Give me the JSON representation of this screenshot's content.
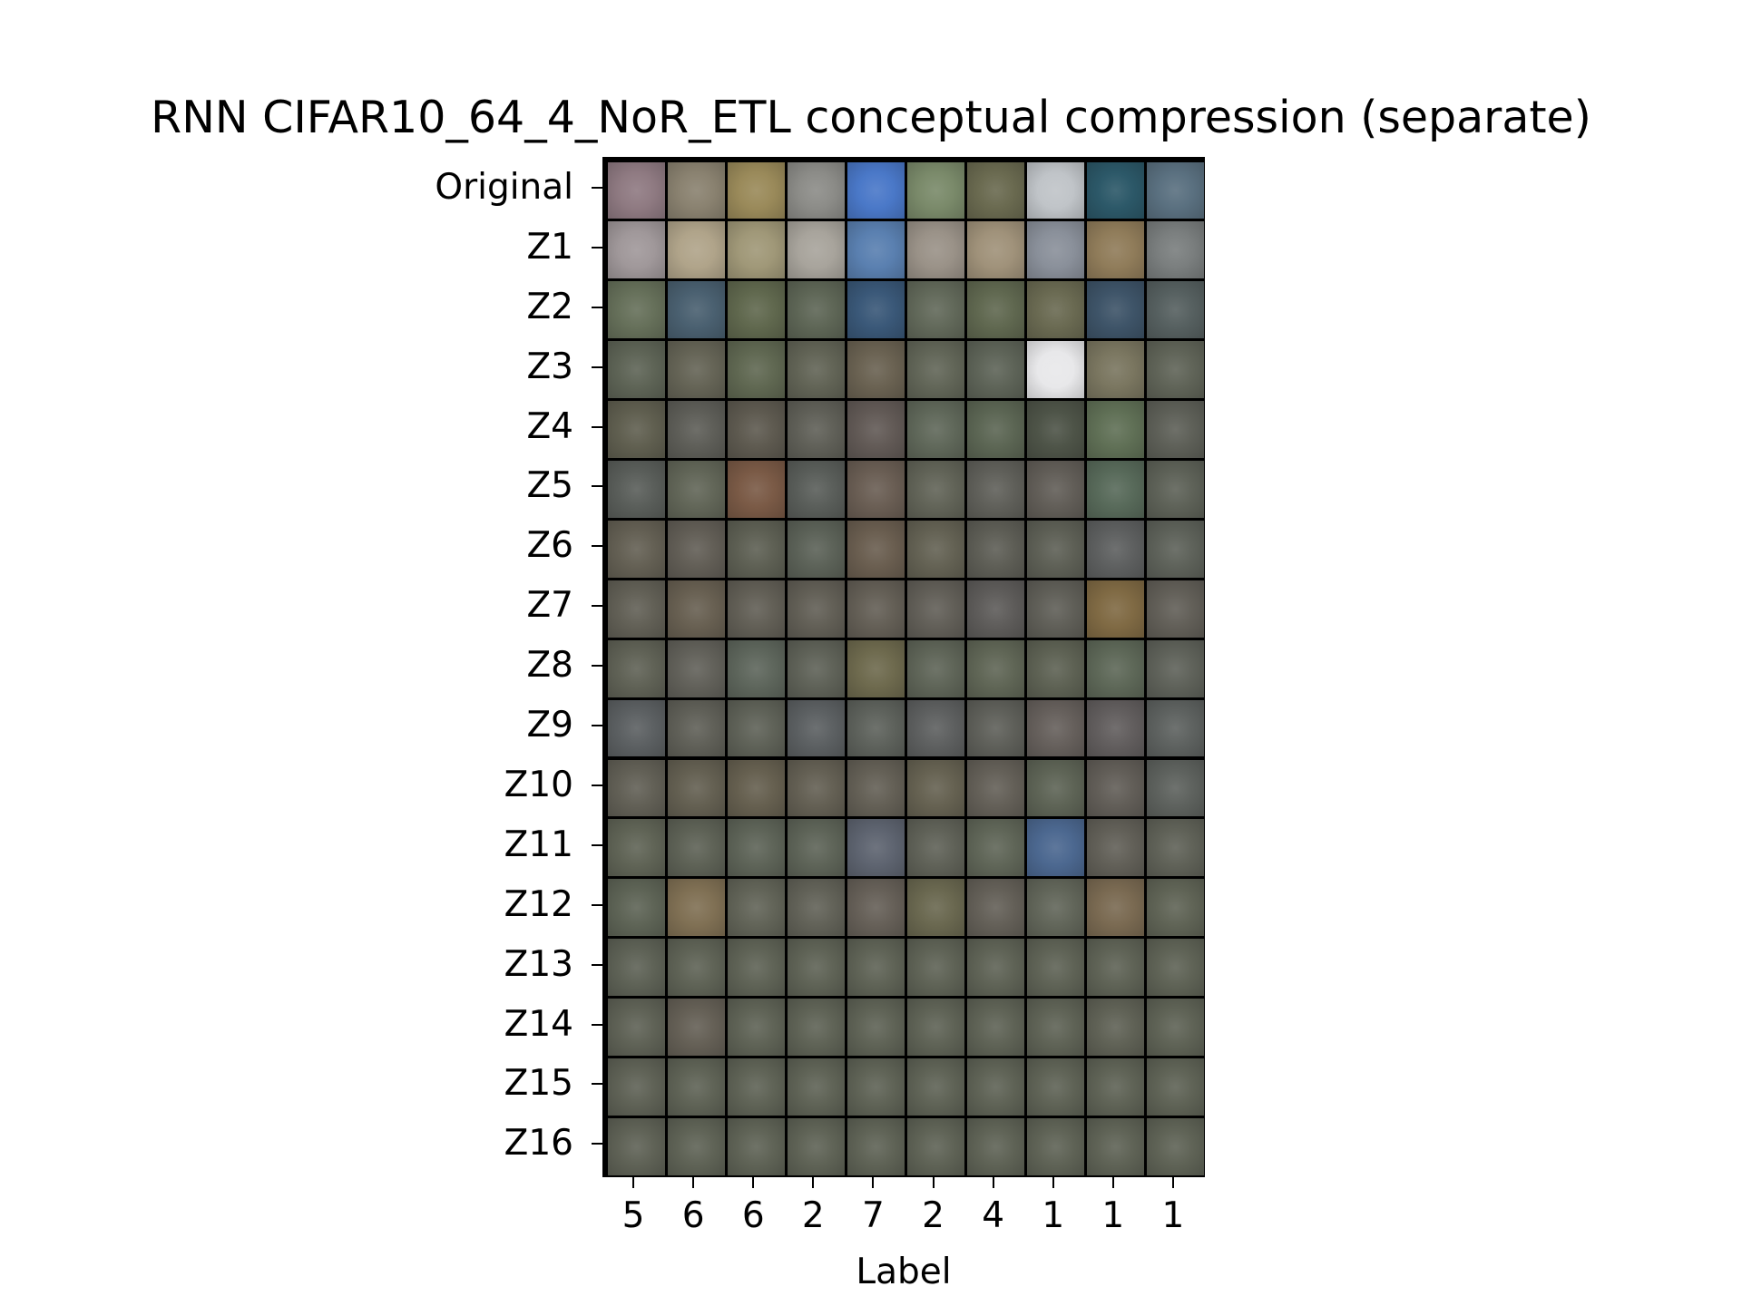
{
  "figure": {
    "title": "RNN CIFAR10_64_4_NoR_ETL conceptual compression (separate)",
    "xlabel": "Label"
  },
  "rows": [
    "Original",
    "Z1",
    "Z2",
    "Z3",
    "Z4",
    "Z5",
    "Z6",
    "Z7",
    "Z8",
    "Z9",
    "Z10",
    "Z11",
    "Z12",
    "Z13",
    "Z14",
    "Z15",
    "Z16"
  ],
  "columns": [
    "5",
    "6",
    "6",
    "2",
    "7",
    "2",
    "4",
    "1",
    "1",
    "1"
  ],
  "colors": {
    "original": [
      "#8f7a82",
      "#8a8270",
      "#9a8a5a",
      "#8c8c88",
      "#4a78c8",
      "#7a8a6a",
      "#6a6a50",
      "#c0c4c8",
      "#2c5868",
      "#5a7080"
    ],
    "z1": [
      "#a0989a",
      "#b0a48a",
      "#a09878",
      "#a8a49c",
      "#5a80b0",
      "#9a9288",
      "#a0927a",
      "#8a909a",
      "#907c5a",
      "#7a7e7e"
    ],
    "z2": [
      "#66705a",
      "#4a6070",
      "#60684e",
      "#5e6656",
      "#3a5878",
      "#62695a",
      "#606850",
      "#6a6a52",
      "#3e5468",
      "#566060"
    ],
    "z3": [
      "#5e6456",
      "#656456",
      "#606852",
      "#626456",
      "#6a6252",
      "#626658",
      "#5e6458",
      "#e8e8ea",
      "#7a7660",
      "#606458"
    ],
    "z4": [
      "#605f50",
      "#5e5e58",
      "#5e5a50",
      "#606058",
      "#625a56",
      "#60685a",
      "#5c6654",
      "#4e5448",
      "#607056",
      "#5e6058"
    ],
    "z5": [
      "#5a5e5a",
      "#626658",
      "#7a5a46",
      "#5a5e5a",
      "#6a5e54",
      "#626458",
      "#60605a",
      "#625e58",
      "#586a5a",
      "#5e6258"
    ],
    "z6": [
      "#646054",
      "#625e56",
      "#5e6054",
      "#5c6258",
      "#6a5e50",
      "#646254",
      "#5e5e56",
      "#5e6056",
      "#5e6060",
      "#5e625a"
    ],
    "z7": [
      "#626056",
      "#686052",
      "#625f56",
      "#625f56",
      "#645f56",
      "#625f58",
      "#5e5c5a",
      "#605f58",
      "#806a44",
      "#625f58"
    ],
    "z8": [
      "#606256",
      "#62615a",
      "#5e665c",
      "#5f6258",
      "#6e6a4e",
      "#5f6558",
      "#606656",
      "#5e6254",
      "#5e6858",
      "#5f625a"
    ],
    "z9": [
      "#5c6062",
      "#606058",
      "#5f6258",
      "#5c6062",
      "#5e625c",
      "#5e6060",
      "#5f605a",
      "#66605c",
      "#625e5e",
      "#5e6260"
    ],
    "z10": [
      "#626056",
      "#646052",
      "#666050",
      "#646054",
      "#646056",
      "#666252",
      "#646058",
      "#5e6456",
      "#625e58",
      "#5e625e"
    ],
    "z11": [
      "#606456",
      "#5e6256",
      "#5e6458",
      "#5e6458",
      "#5e6470",
      "#606258",
      "#606658",
      "#4c6890",
      "#626058",
      "#606258"
    ],
    "z12": [
      "#5e6456",
      "#807054",
      "#626458",
      "#626258",
      "#666058",
      "#6a6850",
      "#646058",
      "#62665a",
      "#7a6a52",
      "#606456"
    ],
    "z13": [
      "#5e6256",
      "#5f6356",
      "#5f6356",
      "#5f6356",
      "#5f6356",
      "#5f6356",
      "#5f6356",
      "#5f6356",
      "#5f6356",
      "#5f6356"
    ],
    "z14": [
      "#5f6256",
      "#656056",
      "#5f6356",
      "#5f6356",
      "#5f6356",
      "#5f6356",
      "#5f6356",
      "#5f6356",
      "#606256",
      "#5f6356"
    ],
    "z15": [
      "#5f6256",
      "#5f6356",
      "#5f6356",
      "#5f6356",
      "#5f6356",
      "#5f6356",
      "#5f6356",
      "#5f6356",
      "#5f6356",
      "#5f6356"
    ],
    "z16": [
      "#5f6256",
      "#5f6356",
      "#5f6356",
      "#5f6356",
      "#5f6356",
      "#5f6356",
      "#5f6356",
      "#5f6356",
      "#5f6356",
      "#5f6356"
    ]
  }
}
